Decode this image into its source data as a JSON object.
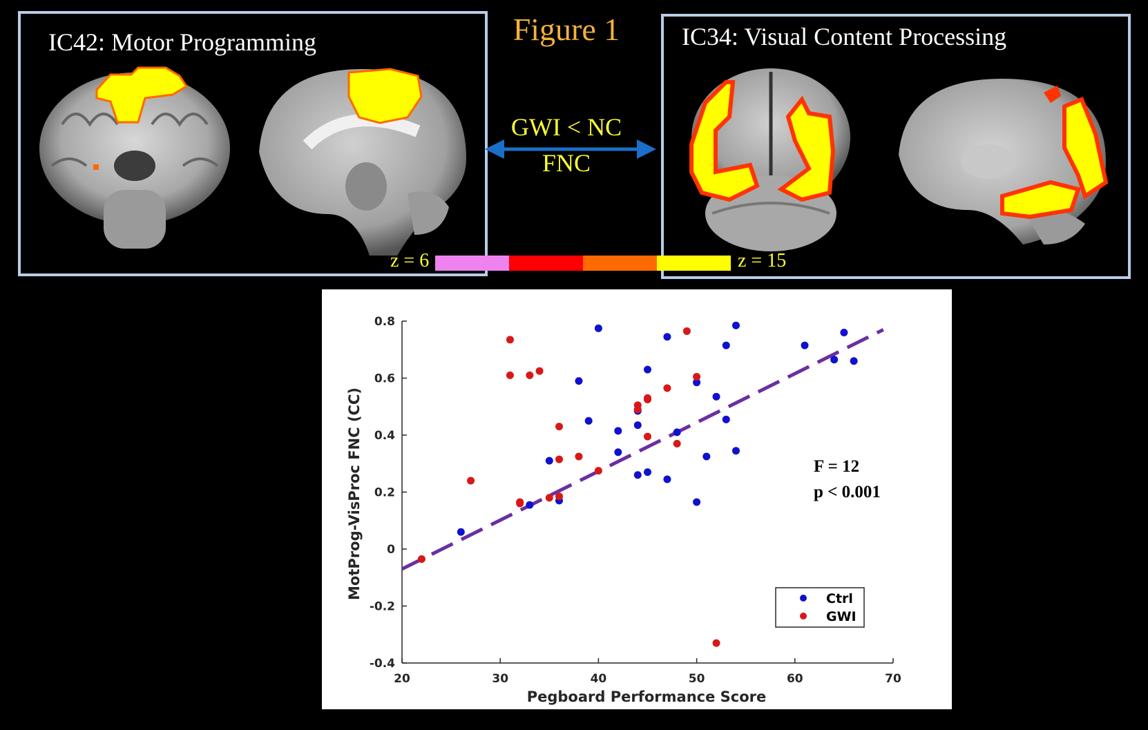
{
  "figure_title": "Figure 1",
  "left_panel": {
    "title": "IC42: Motor Programming"
  },
  "right_panel": {
    "title": "IC34: Visual Content Processing"
  },
  "connection": {
    "line1": "GWI < NC",
    "line2": "FNC"
  },
  "colorbar": {
    "min_label": "z = 6",
    "max_label": "z = 15",
    "colors": [
      "#ee82ee",
      "#ff0000",
      "#ff6a00",
      "#ffff00"
    ]
  },
  "colors": {
    "ctrl": "#1010d0",
    "gwi": "#d81818",
    "fit_line": "#6a2fa0",
    "panel_border": "#b9cde6",
    "title_orange": "#f4b23c",
    "label_yellow": "#ffff33"
  },
  "chart_data": {
    "type": "scatter",
    "xlabel": "Pegboard Performance Score",
    "ylabel": "MotProg-VisProc FNC (CC)",
    "xlim": [
      20,
      70
    ],
    "ylim": [
      -0.4,
      0.8
    ],
    "xticks": [
      20,
      30,
      40,
      50,
      60,
      70
    ],
    "yticks": [
      -0.4,
      -0.2,
      0,
      0.2,
      0.4,
      0.6,
      0.8
    ],
    "ytick_labels": [
      "-0.4",
      "-0.2",
      "0",
      "0.2",
      "0.4",
      "0.6",
      "0.8"
    ],
    "stats": {
      "line1": "F = 12",
      "line2": "p < 0.001"
    },
    "legend_position": "bottom-right",
    "fit_line": {
      "x": [
        20,
        69
      ],
      "y": [
        -0.07,
        0.77
      ]
    },
    "series": [
      {
        "name": "Ctrl",
        "color": "#1010d0",
        "points": [
          [
            26,
            0.06
          ],
          [
            33,
            0.155
          ],
          [
            35,
            0.31
          ],
          [
            36,
            0.17
          ],
          [
            38,
            0.59
          ],
          [
            39,
            0.45
          ],
          [
            40,
            0.775
          ],
          [
            42,
            0.415
          ],
          [
            42,
            0.34
          ],
          [
            44,
            0.485
          ],
          [
            44,
            0.435
          ],
          [
            44,
            0.26
          ],
          [
            45,
            0.63
          ],
          [
            45,
            0.27
          ],
          [
            47,
            0.745
          ],
          [
            47,
            0.245
          ],
          [
            48,
            0.41
          ],
          [
            50,
            0.585
          ],
          [
            50,
            0.165
          ],
          [
            51,
            0.325
          ],
          [
            52,
            0.535
          ],
          [
            53,
            0.715
          ],
          [
            53,
            0.455
          ],
          [
            54,
            0.785
          ],
          [
            54,
            0.345
          ],
          [
            61,
            0.715
          ],
          [
            64,
            0.665
          ],
          [
            65,
            0.76
          ],
          [
            66,
            0.66
          ]
        ]
      },
      {
        "name": "GWI",
        "color": "#d81818",
        "points": [
          [
            22,
            -0.035
          ],
          [
            27,
            0.24
          ],
          [
            31,
            0.735
          ],
          [
            31,
            0.61
          ],
          [
            32,
            0.165
          ],
          [
            32,
            0.16
          ],
          [
            33,
            0.61
          ],
          [
            34,
            0.625
          ],
          [
            35,
            0.18
          ],
          [
            36,
            0.43
          ],
          [
            36,
            0.315
          ],
          [
            36,
            0.185
          ],
          [
            38,
            0.325
          ],
          [
            40,
            0.275
          ],
          [
            44,
            0.505
          ],
          [
            44,
            0.49
          ],
          [
            45,
            0.53
          ],
          [
            45,
            0.525
          ],
          [
            45,
            0.395
          ],
          [
            47,
            0.565
          ],
          [
            48,
            0.37
          ],
          [
            49,
            0.765
          ],
          [
            50,
            0.605
          ],
          [
            52,
            -0.33
          ]
        ]
      }
    ]
  }
}
